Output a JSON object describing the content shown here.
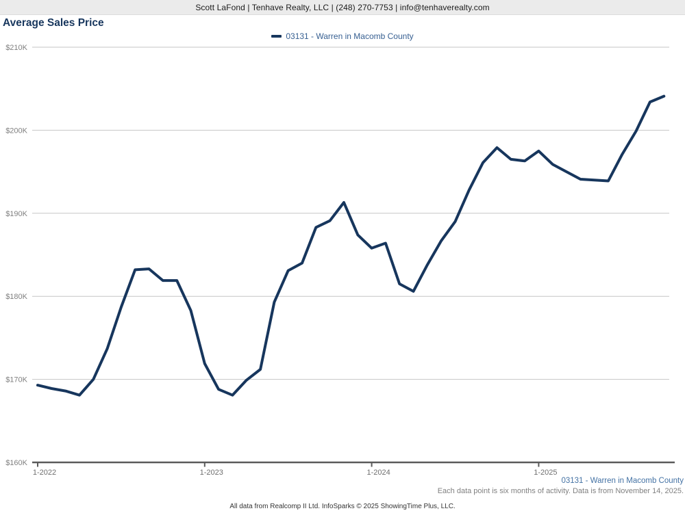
{
  "header": {
    "text": "Scott LaFond | Tenhave Realty, LLC | (248) 270-7753 | info@tenhaverealty.com"
  },
  "title": "Average Sales Price",
  "legend": {
    "label": "03131 - Warren in Macomb County"
  },
  "footer": {
    "series_label": "03131 - Warren in Macomb County",
    "note": "Each data point is six months of activity. Data is from November 14, 2025.",
    "attribution": "All data from Realcomp II Ltd. InfoSparks © 2025 ShowingTime Plus, LLC."
  },
  "colors": {
    "line": "#17365d",
    "title_text": "#17365d",
    "legend_text": "#365f91",
    "footer_link_text": "#4472a4",
    "grid": "#c6c6c6",
    "axis": "#5a5a5a",
    "y_label_text": "#7f7f7f",
    "x_label_text": "#6e6e6e",
    "header_bg": "#ebebeb"
  },
  "chart_data": {
    "type": "line",
    "title": "Average Sales Price",
    "unit": "USD thousands",
    "ylim": [
      160,
      210
    ],
    "y_ticks": [
      "$160K",
      "$170K",
      "$180K",
      "$190K",
      "$200K",
      "$210K"
    ],
    "x_ticks": [
      "1-2022",
      "1-2023",
      "1-2024",
      "1-2025"
    ],
    "grid": "horizontal gridlines on, x-axis baseline at $160K",
    "legend_position": "top-center",
    "months": [
      "2022-01",
      "2022-02",
      "2022-03",
      "2022-04",
      "2022-05",
      "2022-06",
      "2022-07",
      "2022-08",
      "2022-09",
      "2022-10",
      "2022-11",
      "2022-12",
      "2023-01",
      "2023-02",
      "2023-03",
      "2023-04",
      "2023-05",
      "2023-06",
      "2023-07",
      "2023-08",
      "2023-09",
      "2023-10",
      "2023-11",
      "2023-12",
      "2024-01",
      "2024-02",
      "2024-03",
      "2024-04",
      "2024-05",
      "2024-06",
      "2024-07",
      "2024-08",
      "2024-09",
      "2024-10",
      "2024-11",
      "2024-12",
      "2025-01",
      "2025-02",
      "2025-03",
      "2025-04",
      "2025-05",
      "2025-06",
      "2025-07",
      "2025-08",
      "2025-09",
      "2025-10"
    ],
    "series": [
      {
        "name": "03131 - Warren in Macomb County",
        "values": [
          169.3,
          168.9,
          168.6,
          168.1,
          170.0,
          173.7,
          178.7,
          183.2,
          183.3,
          181.9,
          181.9,
          178.3,
          171.9,
          168.8,
          168.1,
          169.9,
          171.2,
          179.3,
          183.1,
          184.0,
          188.3,
          189.1,
          191.3,
          187.4,
          185.8,
          186.4,
          181.5,
          180.6,
          183.8,
          186.7,
          189.0,
          192.8,
          196.1,
          197.9,
          196.5,
          196.3,
          197.5,
          195.9,
          195.0,
          194.1,
          194.0,
          193.9,
          197.1,
          199.9,
          203.4,
          204.1
        ]
      }
    ]
  }
}
